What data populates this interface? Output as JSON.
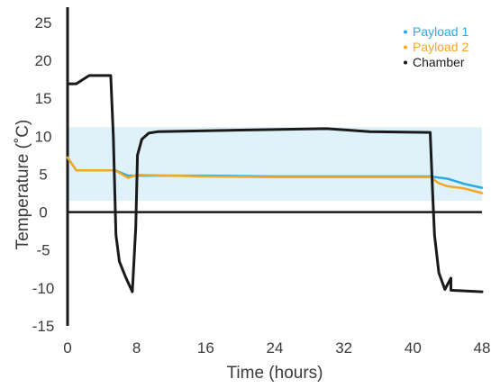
{
  "chart_data": {
    "type": "line",
    "title": "",
    "xlabel": "Time (hours)",
    "ylabel": "Temperature (˚C)",
    "xlim": [
      0,
      48
    ],
    "ylim": [
      -15,
      27
    ],
    "x_ticks": [
      "0",
      "8",
      "16",
      "24",
      "32",
      "40",
      "48"
    ],
    "y_ticks": [
      "25",
      "20",
      "15",
      "10",
      "5",
      "0",
      "-5",
      "-10",
      "-15"
    ],
    "band": {
      "from": 1.5,
      "to": 11.2,
      "color": "#dff2fa"
    },
    "grid": false,
    "legend_position": "top-right",
    "series": [
      {
        "name": "Payload 1",
        "color": "#29abe2",
        "points": [
          [
            0,
            7.2
          ],
          [
            1,
            5.5
          ],
          [
            3,
            5.5
          ],
          [
            5.5,
            5.5
          ],
          [
            7,
            4.8
          ],
          [
            16,
            4.8
          ],
          [
            24,
            4.7
          ],
          [
            32,
            4.7
          ],
          [
            40,
            4.7
          ],
          [
            42,
            4.7
          ],
          [
            44,
            4.4
          ],
          [
            46,
            3.7
          ],
          [
            48,
            3.2
          ]
        ]
      },
      {
        "name": "Payload 2",
        "color": "#f5a623",
        "points": [
          [
            0,
            7.2
          ],
          [
            1,
            5.5
          ],
          [
            3,
            5.5
          ],
          [
            5.5,
            5.5
          ],
          [
            7,
            4.5
          ],
          [
            8,
            4.9
          ],
          [
            16,
            4.7
          ],
          [
            24,
            4.6
          ],
          [
            32,
            4.6
          ],
          [
            42,
            4.6
          ],
          [
            43,
            3.8
          ],
          [
            44,
            3.4
          ],
          [
            46,
            3.1
          ],
          [
            48,
            2.5
          ]
        ]
      },
      {
        "name": "Chamber",
        "color": "#1a1a1a",
        "points": [
          [
            0,
            16.9
          ],
          [
            1,
            16.9
          ],
          [
            2.5,
            18
          ],
          [
            5,
            18
          ],
          [
            5.3,
            10
          ],
          [
            5.6,
            -3
          ],
          [
            6,
            -6.5
          ],
          [
            6.7,
            -8.5
          ],
          [
            7.5,
            -10.5
          ],
          [
            7.9,
            -2
          ],
          [
            8.1,
            7.5
          ],
          [
            8.6,
            9.6
          ],
          [
            9.4,
            10.4
          ],
          [
            10.5,
            10.6
          ],
          [
            20,
            10.8
          ],
          [
            30,
            11
          ],
          [
            35,
            10.6
          ],
          [
            42,
            10.5
          ],
          [
            42.3,
            2
          ],
          [
            42.5,
            -3
          ],
          [
            43,
            -8
          ],
          [
            43.7,
            -10.2
          ],
          [
            44.4,
            -8.7
          ],
          [
            44.4,
            -10.3
          ],
          [
            48,
            -10.5
          ]
        ]
      }
    ]
  }
}
